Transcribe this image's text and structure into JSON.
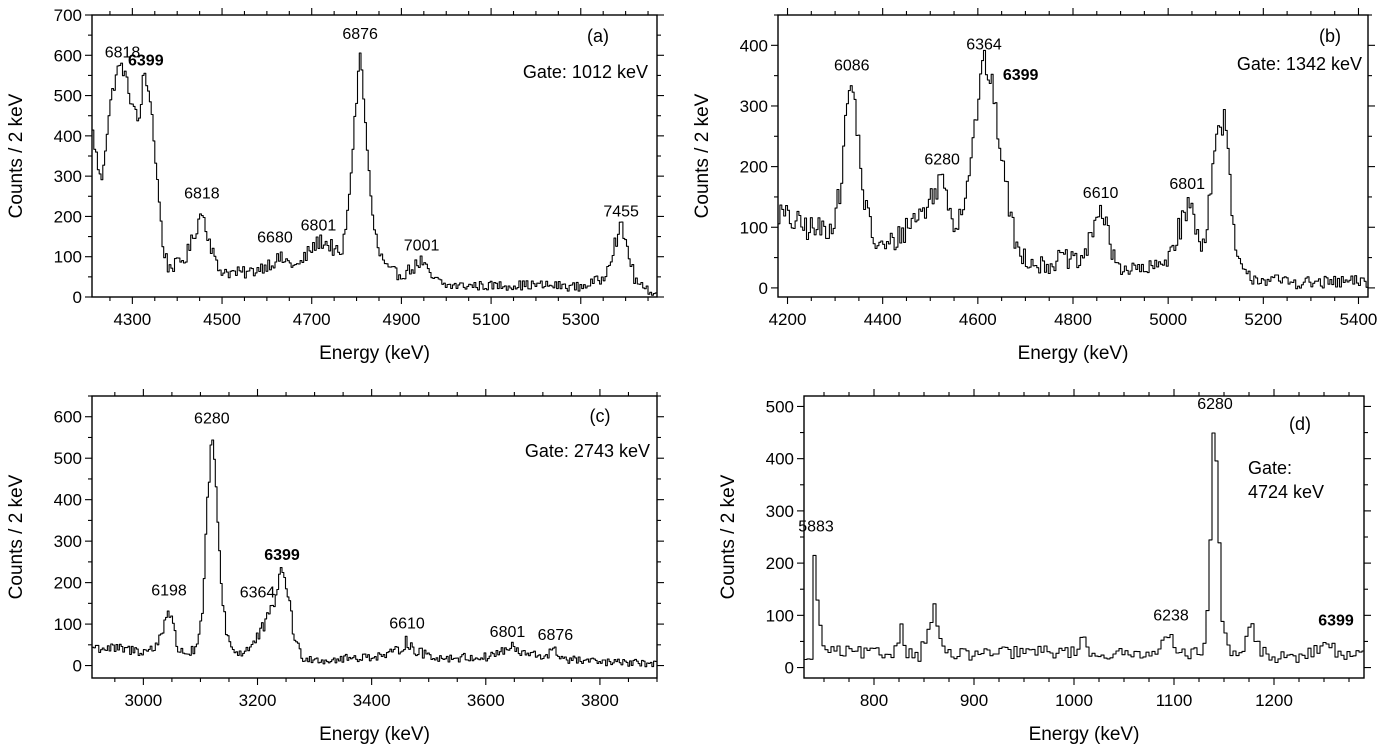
{
  "figure": {
    "panels": [
      "a",
      "b",
      "c",
      "d"
    ]
  },
  "chart_data": [
    {
      "id": "a",
      "type": "line",
      "panel_label": "(a)",
      "gate_lines": [
        "Gate: 1012 keV"
      ],
      "xlabel": "Energy (keV)",
      "ylabel": "Counts / 2 keV",
      "xlim": [
        4210,
        5470
      ],
      "ylim": [
        0,
        700
      ],
      "xticks": [
        4300,
        4500,
        4700,
        4900,
        5100,
        5300
      ],
      "yticks": [
        0,
        100,
        200,
        300,
        400,
        500,
        600,
        700
      ],
      "spectrum": {
        "baseline": [
          [
            4210,
            420
          ],
          [
            4230,
            280
          ],
          [
            4250,
            470
          ],
          [
            4265,
            560
          ],
          [
            4278,
            575
          ],
          [
            4290,
            520
          ],
          [
            4305,
            460
          ],
          [
            4315,
            430
          ],
          [
            4325,
            550
          ],
          [
            4340,
            500
          ],
          [
            4355,
            300
          ],
          [
            4368,
            130
          ],
          [
            4380,
            75
          ],
          [
            4400,
            80
          ],
          [
            4420,
            100
          ],
          [
            4440,
            160
          ],
          [
            4455,
            215
          ],
          [
            4470,
            150
          ],
          [
            4490,
            70
          ],
          [
            4520,
            60
          ],
          [
            4560,
            60
          ],
          [
            4600,
            80
          ],
          [
            4630,
            95
          ],
          [
            4670,
            75
          ],
          [
            4700,
            120
          ],
          [
            4720,
            140
          ],
          [
            4745,
            125
          ],
          [
            4765,
            95
          ],
          [
            4780,
            200
          ],
          [
            4795,
            420
          ],
          [
            4808,
            615
          ],
          [
            4820,
            430
          ],
          [
            4835,
            200
          ],
          [
            4850,
            110
          ],
          [
            4870,
            65
          ],
          [
            4900,
            55
          ],
          [
            4930,
            75
          ],
          [
            4945,
            90
          ],
          [
            4965,
            50
          ],
          [
            5000,
            28
          ],
          [
            5100,
            28
          ],
          [
            5200,
            30
          ],
          [
            5300,
            25
          ],
          [
            5350,
            45
          ],
          [
            5375,
            130
          ],
          [
            5390,
            175
          ],
          [
            5405,
            120
          ],
          [
            5420,
            45
          ],
          [
            5440,
            20
          ],
          [
            5470,
            10
          ]
        ],
        "noise": 12,
        "bin": 4
      },
      "peaks": [
        {
          "label": "6818",
          "x": 4278,
          "y": 575,
          "bold": false
        },
        {
          "label": "6399",
          "x": 4330,
          "y": 555,
          "bold": true
        },
        {
          "label": "6818",
          "x": 4455,
          "y": 225,
          "bold": false
        },
        {
          "label": "6680",
          "x": 4618,
          "y": 115,
          "bold": false
        },
        {
          "label": "6801",
          "x": 4715,
          "y": 145,
          "bold": false
        },
        {
          "label": "6876",
          "x": 4808,
          "y": 620,
          "bold": false
        },
        {
          "label": "7001",
          "x": 4945,
          "y": 95,
          "bold": false
        },
        {
          "label": "7455",
          "x": 5390,
          "y": 180,
          "bold": false
        }
      ]
    },
    {
      "id": "b",
      "type": "line",
      "panel_label": "(b)",
      "gate_lines": [
        "Gate: 1342 keV"
      ],
      "xlabel": "Energy (keV)",
      "ylabel": "Counts / 2 keV",
      "xlim": [
        4180,
        5420
      ],
      "ylim": [
        -15,
        450
      ],
      "xticks": [
        4200,
        4400,
        4600,
        4800,
        5000,
        5200,
        5400
      ],
      "yticks": [
        0,
        100,
        200,
        300,
        400
      ],
      "spectrum": {
        "baseline": [
          [
            4180,
            125
          ],
          [
            4220,
            105
          ],
          [
            4260,
            95
          ],
          [
            4290,
            100
          ],
          [
            4310,
            150
          ],
          [
            4325,
            300
          ],
          [
            4335,
            340
          ],
          [
            4345,
            280
          ],
          [
            4360,
            150
          ],
          [
            4380,
            80
          ],
          [
            4400,
            65
          ],
          [
            4430,
            80
          ],
          [
            4460,
            110
          ],
          [
            4490,
            130
          ],
          [
            4510,
            160
          ],
          [
            4525,
            185
          ],
          [
            4540,
            140
          ],
          [
            4555,
            100
          ],
          [
            4575,
            160
          ],
          [
            4592,
            250
          ],
          [
            4605,
            340
          ],
          [
            4615,
            375
          ],
          [
            4630,
            330
          ],
          [
            4650,
            220
          ],
          [
            4665,
            140
          ],
          [
            4680,
            70
          ],
          [
            4700,
            50
          ],
          [
            4740,
            35
          ],
          [
            4780,
            50
          ],
          [
            4810,
            40
          ],
          [
            4830,
            60
          ],
          [
            4848,
            120
          ],
          [
            4860,
            130
          ],
          [
            4875,
            80
          ],
          [
            4890,
            40
          ],
          [
            4920,
            30
          ],
          [
            4960,
            30
          ],
          [
            4990,
            40
          ],
          [
            5010,
            70
          ],
          [
            5030,
            110
          ],
          [
            5045,
            140
          ],
          [
            5060,
            95
          ],
          [
            5075,
            70
          ],
          [
            5090,
            170
          ],
          [
            5105,
            260
          ],
          [
            5118,
            280
          ],
          [
            5130,
            175
          ],
          [
            5140,
            65
          ],
          [
            5160,
            20
          ],
          [
            5220,
            12
          ],
          [
            5300,
            8
          ],
          [
            5420,
            10
          ]
        ],
        "noise": 14,
        "bin": 4
      },
      "peaks": [
        {
          "label": "6086",
          "x": 4335,
          "y": 345,
          "bold": false
        },
        {
          "label": "6280",
          "x": 4525,
          "y": 190,
          "bold": false
        },
        {
          "label": "6364",
          "x": 4613,
          "y": 380,
          "bold": false
        },
        {
          "label": "6399",
          "x": 4690,
          "y": 330,
          "bold": true
        },
        {
          "label": "6610",
          "x": 4858,
          "y": 135,
          "bold": false
        },
        {
          "label": "6801",
          "x": 5040,
          "y": 150,
          "bold": false
        }
      ]
    },
    {
      "id": "c",
      "type": "line",
      "panel_label": "(c)",
      "gate_lines": [
        "Gate: 2743 keV"
      ],
      "xlabel": "Energy (keV)",
      "ylabel": "Counts / 2 keV",
      "xlim": [
        2910,
        3900
      ],
      "ylim": [
        -30,
        650
      ],
      "xticks": [
        3000,
        3200,
        3400,
        3600,
        3800
      ],
      "yticks": [
        0,
        100,
        200,
        300,
        400,
        500,
        600
      ],
      "spectrum": {
        "baseline": [
          [
            2910,
            45
          ],
          [
            2950,
            40
          ],
          [
            3000,
            35
          ],
          [
            3020,
            40
          ],
          [
            3035,
            90
          ],
          [
            3042,
            140
          ],
          [
            3050,
            110
          ],
          [
            3060,
            40
          ],
          [
            3080,
            30
          ],
          [
            3095,
            40
          ],
          [
            3105,
            150
          ],
          [
            3112,
            380
          ],
          [
            3120,
            560
          ],
          [
            3128,
            420
          ],
          [
            3136,
            200
          ],
          [
            3146,
            80
          ],
          [
            3160,
            30
          ],
          [
            3180,
            35
          ],
          [
            3195,
            55
          ],
          [
            3210,
            90
          ],
          [
            3225,
            130
          ],
          [
            3238,
            210
          ],
          [
            3245,
            225
          ],
          [
            3255,
            170
          ],
          [
            3265,
            60
          ],
          [
            3280,
            20
          ],
          [
            3320,
            12
          ],
          [
            3380,
            20
          ],
          [
            3430,
            25
          ],
          [
            3450,
            40
          ],
          [
            3462,
            60
          ],
          [
            3475,
            35
          ],
          [
            3520,
            18
          ],
          [
            3600,
            20
          ],
          [
            3630,
            35
          ],
          [
            3645,
            45
          ],
          [
            3660,
            30
          ],
          [
            3700,
            22
          ],
          [
            3720,
            35
          ],
          [
            3740,
            15
          ],
          [
            3800,
            8
          ],
          [
            3900,
            5
          ]
        ],
        "noise": 12,
        "bin": 3
      },
      "peaks": [
        {
          "label": "6198",
          "x": 3045,
          "y": 150,
          "bold": false
        },
        {
          "label": "6280",
          "x": 3120,
          "y": 565,
          "bold": false
        },
        {
          "label": "6364",
          "x": 3200,
          "y": 145,
          "bold": false
        },
        {
          "label": "6399",
          "x": 3243,
          "y": 235,
          "bold": true
        },
        {
          "label": "6610",
          "x": 3462,
          "y": 70,
          "bold": false
        },
        {
          "label": "6801",
          "x": 3638,
          "y": 50,
          "bold": false
        },
        {
          "label": "6876",
          "x": 3722,
          "y": 42,
          "bold": false
        }
      ]
    },
    {
      "id": "d",
      "type": "line",
      "panel_label": "(d)",
      "gate_lines": [
        "Gate:",
        "4724 keV"
      ],
      "xlabel": "Energy (keV)",
      "ylabel": "Counts / 2 keV",
      "xlim": [
        730,
        1290
      ],
      "ylim": [
        -20,
        520
      ],
      "xticks": [
        800,
        900,
        1000,
        1100,
        1200
      ],
      "yticks": [
        0,
        100,
        200,
        300,
        400,
        500
      ],
      "spectrum": {
        "baseline": [
          [
            730,
            0
          ],
          [
            735,
            30
          ],
          [
            738,
            10
          ],
          [
            741,
            240
          ],
          [
            744,
            120
          ],
          [
            748,
            40
          ],
          [
            760,
            30
          ],
          [
            790,
            28
          ],
          [
            820,
            25
          ],
          [
            828,
            85
          ],
          [
            833,
            30
          ],
          [
            845,
            20
          ],
          [
            860,
            110
          ],
          [
            866,
            60
          ],
          [
            872,
            25
          ],
          [
            900,
            25
          ],
          [
            950,
            30
          ],
          [
            1000,
            30
          ],
          [
            1012,
            55
          ],
          [
            1018,
            25
          ],
          [
            1060,
            25
          ],
          [
            1090,
            40
          ],
          [
            1096,
            70
          ],
          [
            1102,
            40
          ],
          [
            1120,
            25
          ],
          [
            1132,
            40
          ],
          [
            1136,
            200
          ],
          [
            1140,
            470
          ],
          [
            1144,
            340
          ],
          [
            1148,
            80
          ],
          [
            1155,
            30
          ],
          [
            1170,
            25
          ],
          [
            1176,
            95
          ],
          [
            1182,
            45
          ],
          [
            1195,
            20
          ],
          [
            1230,
            20
          ],
          [
            1258,
            50
          ],
          [
            1263,
            20
          ],
          [
            1290,
            25
          ]
        ],
        "noise": 12,
        "bin": 3
      },
      "peaks": [
        {
          "label": "5883",
          "x": 742,
          "y": 245,
          "bold": false
        },
        {
          "label": "6238",
          "x": 1097,
          "y": 75,
          "bold": false
        },
        {
          "label": "6280",
          "x": 1141,
          "y": 480,
          "bold": false
        },
        {
          "label": "6399",
          "x": 1262,
          "y": 65,
          "bold": true
        }
      ]
    }
  ]
}
